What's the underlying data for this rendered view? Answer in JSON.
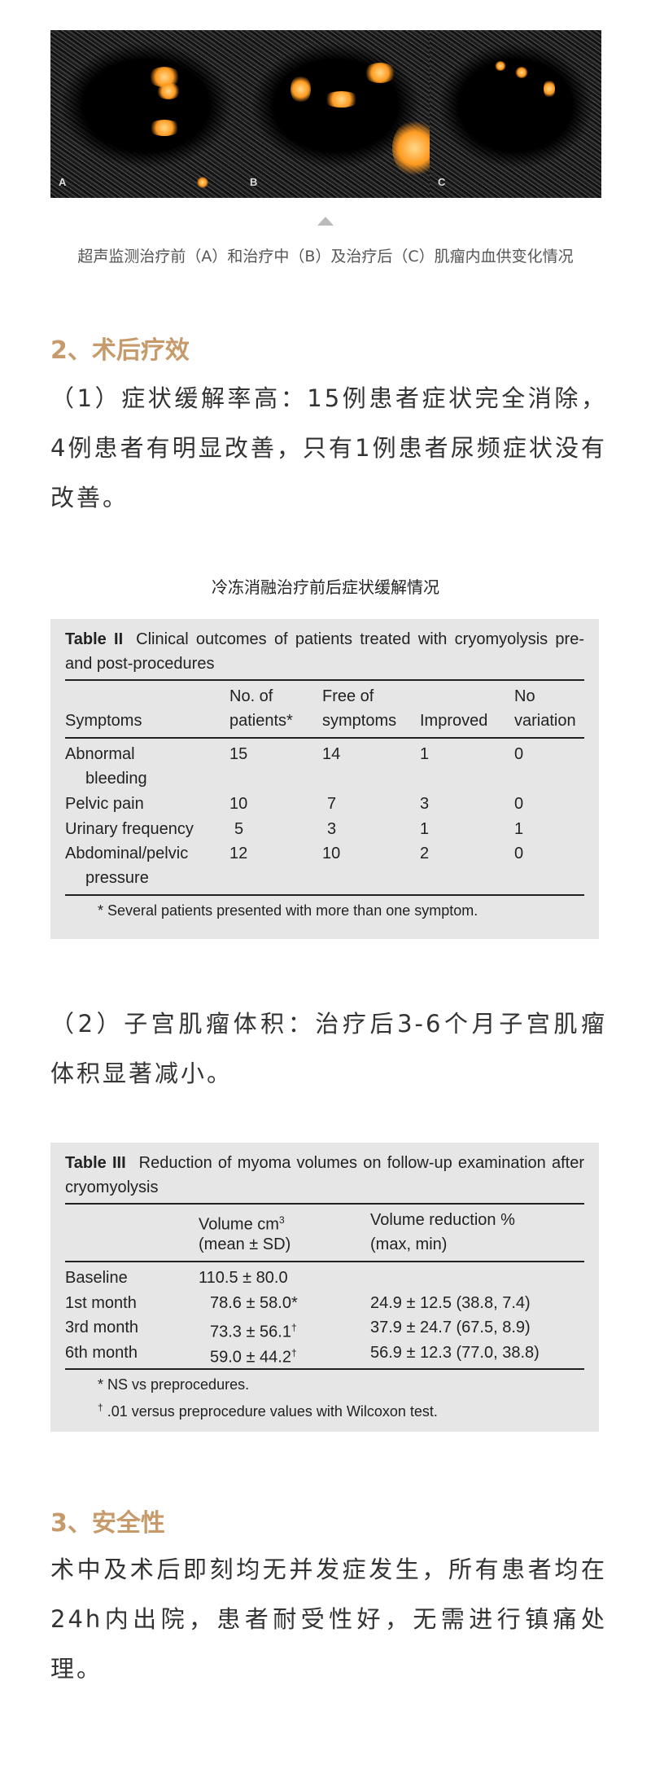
{
  "figure": {
    "panels": [
      {
        "label": "A"
      },
      {
        "label": "B"
      },
      {
        "label": "C"
      }
    ],
    "caption": "超声监测治疗前（A）和治疗中（B）及治疗后（C）肌瘤内血供变化情况"
  },
  "section2": {
    "heading": "2、术后疗效",
    "para1": "（1）症状缓解率高：15例患者症状完全消除，4例患者有明显改善，只有1例患者尿频症状没有改善。",
    "table_caption": "冷冻消融治疗前后症状缓解情况",
    "table2": {
      "label": "Table II",
      "title": "Clinical outcomes of patients treated with cryomyolysis pre- and post-procedures",
      "headers": {
        "symptoms": "Symptoms",
        "patients_1": "No. of",
        "patients_2": "patients*",
        "free_1": "Free of",
        "free_2": "symptoms",
        "improved": "Improved",
        "novar_1": "No",
        "novar_2": "variation"
      },
      "rows": [
        {
          "s1": "Abnormal",
          "s2": "bleeding",
          "n": "15",
          "free": "14",
          "imp": "1",
          "nov": "0"
        },
        {
          "s1": "Pelvic pain",
          "n": "10",
          "free": "7",
          "imp": "3",
          "nov": "0"
        },
        {
          "s1": "Urinary frequency",
          "n": "5",
          "free": "3",
          "imp": "1",
          "nov": "1"
        },
        {
          "s1": "Abdominal/pelvic",
          "s2": "pressure",
          "n": "12",
          "free": "10",
          "imp": "2",
          "nov": "0"
        }
      ],
      "footnote": "* Several patients presented with more than one symptom."
    },
    "para2": "（2）子宫肌瘤体积：治疗后3-6个月子宫肌瘤体积显著减小。",
    "table3": {
      "label": "Table III",
      "title": "Reduction of myoma volumes on follow-up examination after cryomyolysis",
      "headers": {
        "vol_1": "Volume cm",
        "vol_sup": "3",
        "vol_2": "(mean ± SD)",
        "red_1": "Volume reduction %",
        "red_2": "(max, min)"
      },
      "rows": [
        {
          "label": "Baseline",
          "vol": "110.5 ± 80.0",
          "mark": "",
          "red": ""
        },
        {
          "label": "1st month",
          "vol": "78.6 ± 58.0*",
          "mark": "",
          "red": "24.9 ± 12.5 (38.8, 7.4)"
        },
        {
          "label": "3rd month",
          "vol": "73.3 ± 56.1",
          "mark": "†",
          "red": "37.9 ± 24.7 (67.5, 8.9)"
        },
        {
          "label": "6th month",
          "vol": "59.0 ± 44.2",
          "mark": "†",
          "red": "56.9 ± 12.3 (77.0, 38.8)"
        }
      ],
      "footnote1": "* NS vs preprocedures.",
      "footnote2_mark": "†",
      "footnote2": " .01 versus preprocedure values with Wilcoxon test."
    }
  },
  "section3": {
    "heading": "3、安全性",
    "para": "术中及术后即刻均无并发症发生，所有患者均在24h内出院，患者耐受性好，无需进行镇痛处理。"
  },
  "colors": {
    "heading": "#c69a6b",
    "table_bg": "#e6e6e6",
    "text": "#333333"
  }
}
